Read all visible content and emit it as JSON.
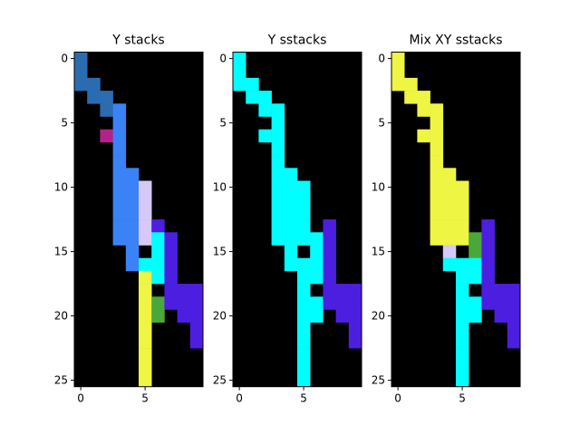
{
  "chart_data": {
    "type": "heatmap",
    "grid": false,
    "x_range": [
      0,
      9
    ],
    "y_range": [
      0,
      25
    ],
    "x_ticks": [
      0,
      5
    ],
    "y_ticks": [
      0,
      5,
      10,
      15,
      20,
      25
    ],
    "background_color": "#000000",
    "colors": {
      "A": "#2b6cb0",
      "B": "#3b82f6",
      "M": "#b5218a",
      "L": "#d6c8f7",
      "C": "#00ffff",
      "P": "#4c1fe0",
      "G": "#4aa83a",
      "Y": "#eef542"
    },
    "panels": [
      {
        "title": "Y stacks",
        "rows": [
          "A.........",
          "A.........",
          "AA........",
          ".AA.......",
          "..AB......",
          "...B......",
          "..MB......",
          "...B......",
          "...B......",
          "...BB.....",
          "...BBL....",
          "...BBL....",
          "...BBL....",
          "...BBLP...",
          "...BBLCP..",
          "....B.CP..",
          "....BCCP..",
          ".....YCP..",
          ".....Y.PPP",
          ".....YGPPP",
          ".....YG.PP",
          ".....Y...P",
          ".....Y...P",
          ".....Y....",
          ".....Y....",
          ".....Y...."
        ]
      },
      {
        "title": "Y sstacks",
        "rows": [
          "C.........",
          "C.........",
          "CC........",
          ".CC.......",
          "..CC......",
          "...C......",
          "..CC......",
          "...C......",
          "...C......",
          "...CC.....",
          "...CCC....",
          "...CCC....",
          "...CCC....",
          "...CCC.P..",
          "...CCCCP..",
          "....C.CP..",
          "....CCCP..",
          ".....CCP..",
          ".....C.PPP",
          ".....CCPPP",
          ".....CC.PP",
          ".....C...P",
          ".....C...P",
          ".....C....",
          ".....C....",
          ".....C...."
        ]
      },
      {
        "title": "Mix XY sstacks",
        "rows": [
          "Y.........",
          "Y.........",
          "YY........",
          ".YY.......",
          "..YY......",
          "...Y......",
          "..YY......",
          "...Y......",
          "...Y......",
          "...YY.....",
          "...YYY....",
          "...YYY....",
          "...YYY....",
          "...YYY.P..",
          "...YYYGP..",
          "....L.GP..",
          "....CCCP..",
          ".....CCP..",
          ".....C.PPP",
          ".....CCPPP",
          ".....CC.PP",
          ".....C...P",
          ".....C...P",
          ".....C....",
          ".....C....",
          ".....C...."
        ]
      }
    ]
  }
}
